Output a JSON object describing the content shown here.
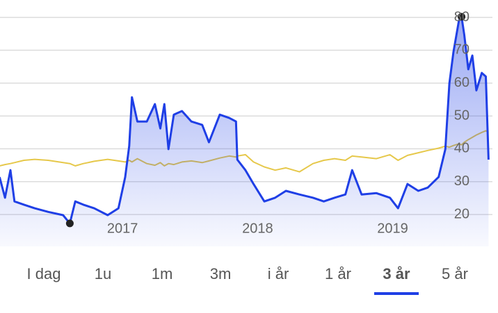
{
  "chart_data": {
    "type": "line",
    "x": [
      2016.09,
      2016.13,
      2016.17,
      2016.2,
      2016.27,
      2016.35,
      2016.45,
      2016.56,
      2016.61,
      2016.65,
      2016.71,
      2016.79,
      2016.89,
      2016.97,
      2017.02,
      2017.05,
      2017.07,
      2017.11,
      2017.18,
      2017.24,
      2017.28,
      2017.31,
      2017.34,
      2017.38,
      2017.44,
      2017.51,
      2017.59,
      2017.64,
      2017.72,
      2017.79,
      2017.84,
      2017.85,
      2017.91,
      2017.97,
      2018.05,
      2018.13,
      2018.21,
      2018.31,
      2018.41,
      2018.49,
      2018.57,
      2018.65,
      2018.7,
      2018.77,
      2018.88,
      2018.98,
      2019.04,
      2019.11,
      2019.19,
      2019.26,
      2019.34,
      2019.39,
      2019.42,
      2019.45,
      2019.49,
      2019.51,
      2019.53,
      2019.56,
      2019.59,
      2019.62,
      2019.66,
      2019.69,
      2019.71
    ],
    "series": [
      {
        "color": "#1f3fe6",
        "fill": true,
        "values": [
          31.4,
          25.1,
          33.5,
          24.0,
          23.0,
          21.9,
          20.8,
          19.8,
          17.3,
          24.0,
          23.0,
          21.9,
          19.8,
          21.9,
          31.4,
          40.9,
          55.7,
          48.3,
          48.3,
          53.6,
          46.2,
          53.6,
          39.9,
          50.4,
          51.5,
          48.3,
          47.3,
          42.0,
          50.4,
          49.4,
          48.3,
          36.7,
          33.5,
          29.3,
          24.0,
          25.1,
          27.2,
          26.1,
          25.1,
          24.0,
          25.1,
          26.1,
          33.5,
          26.1,
          26.5,
          25.1,
          21.9,
          29.3,
          27.2,
          28.2,
          31.4,
          39.9,
          59.9,
          69.4,
          78.9,
          80.2,
          74.7,
          64.2,
          68.4,
          57.8,
          63.1,
          62.0,
          36.7
        ]
      },
      {
        "color": "#e6c84a",
        "fill": false,
        "values": [
          34.8,
          35.2,
          35.5,
          35.8,
          36.5,
          36.8,
          36.5,
          35.8,
          35.5,
          34.8,
          35.5,
          36.2,
          36.8,
          36.3,
          36.0,
          36.5,
          36.0,
          37.0,
          35.5,
          35.0,
          35.8,
          34.8,
          35.5,
          35.2,
          36.0,
          36.3,
          35.8,
          36.3,
          37.2,
          37.8,
          37.5,
          37.8,
          38.2,
          36.0,
          34.5,
          33.5,
          34.2,
          33.0,
          35.5,
          36.5,
          37.0,
          36.5,
          37.8,
          37.5,
          37.0,
          38.2,
          36.5,
          38.0,
          38.8,
          39.5,
          40.2,
          40.8,
          40.5,
          41.0,
          41.5,
          41.2,
          42.0,
          42.8,
          43.5,
          44.2,
          45.0,
          45.5,
          45.0
        ]
      }
    ],
    "highlights": [
      {
        "x": 2016.61,
        "y": 17.3
      },
      {
        "x": 2019.51,
        "y": 80.2
      }
    ],
    "xlim": [
      2016.093,
      2019.78
    ],
    "xticks": [
      2017,
      2018,
      2019
    ],
    "ylim": [
      10.3,
      85.3
    ],
    "yticks": [
      20,
      30,
      40,
      50,
      60,
      70,
      80
    ],
    "grid": true
  },
  "tabs": {
    "items": [
      "I dag",
      "1u",
      "1m",
      "3m",
      "i år",
      "1 år",
      "3 år",
      "5 år"
    ],
    "selected": 6,
    "accent": "#1f3fe6"
  }
}
